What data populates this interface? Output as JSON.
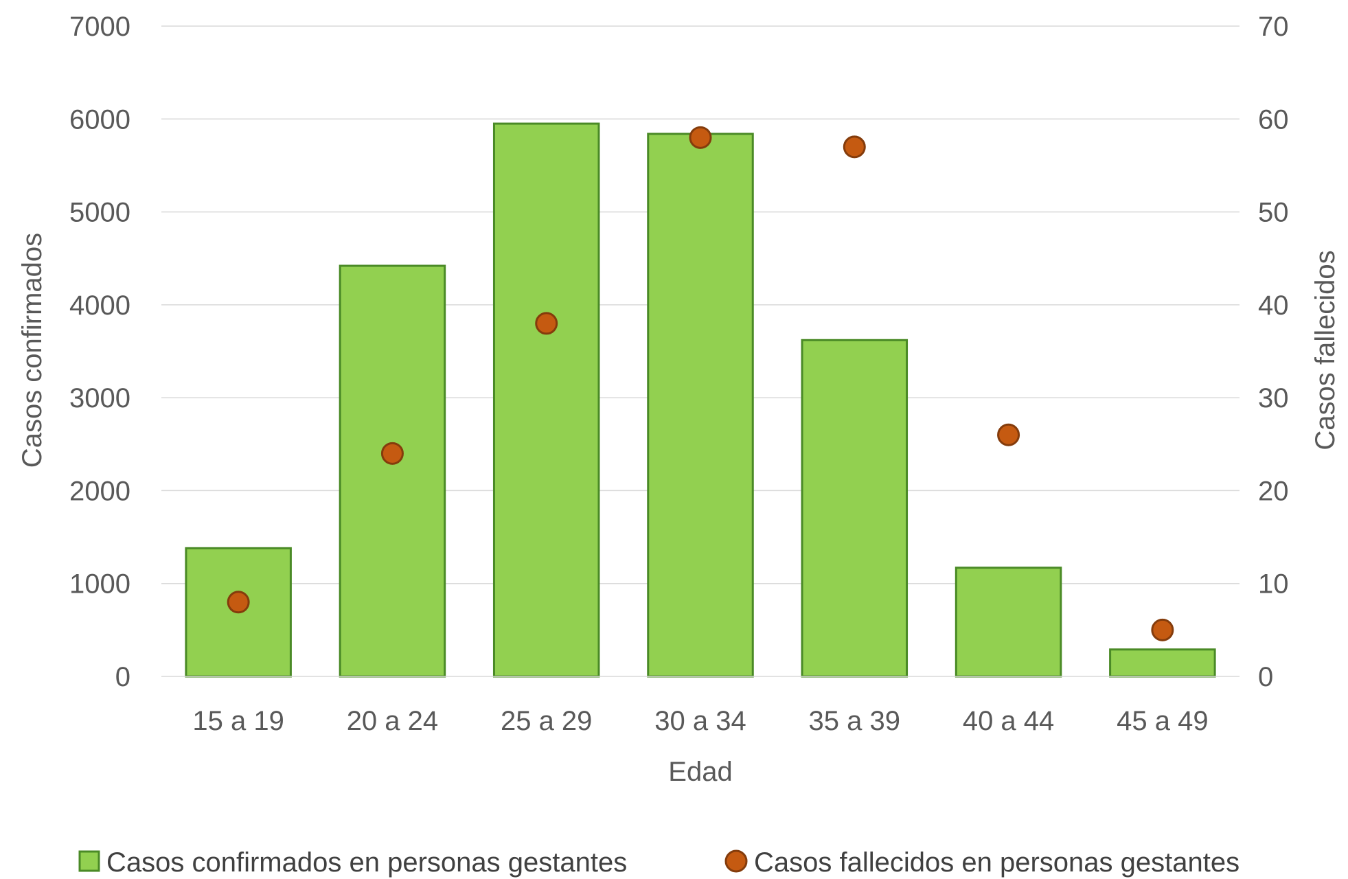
{
  "chart_data": {
    "type": "bar",
    "categories": [
      "15 a 19",
      "20 a 24",
      "25 a 29",
      "30 a 34",
      "35 a 39",
      "40 a 44",
      "45 a 49"
    ],
    "series": [
      {
        "name": "Casos confirmados en personas gestantes",
        "kind": "bar",
        "axis": "left",
        "color": "#92d050",
        "edge_color": "#4a8a26",
        "values": [
          1380,
          4420,
          5950,
          5840,
          3620,
          1170,
          290
        ]
      },
      {
        "name": "Casos fallecidos en personas gestantes",
        "kind": "scatter",
        "axis": "right",
        "color": "#c55a11",
        "edge_color": "#843c0c",
        "values": [
          8,
          24,
          38,
          58,
          57,
          26,
          5
        ]
      }
    ],
    "xlabel": "Edad",
    "ylabel": "Casos confirmados",
    "y2label": "Casos fallecidos",
    "ylim": [
      0,
      7000
    ],
    "y2lim": [
      0,
      70
    ],
    "yticks": [
      "0",
      "1000",
      "2000",
      "3000",
      "4000",
      "5000",
      "6000",
      "7000"
    ],
    "y2ticks": [
      "0",
      "10",
      "20",
      "30",
      "40",
      "50",
      "60",
      "70"
    ],
    "grid": "horizontal",
    "legend_position": "bottom"
  }
}
